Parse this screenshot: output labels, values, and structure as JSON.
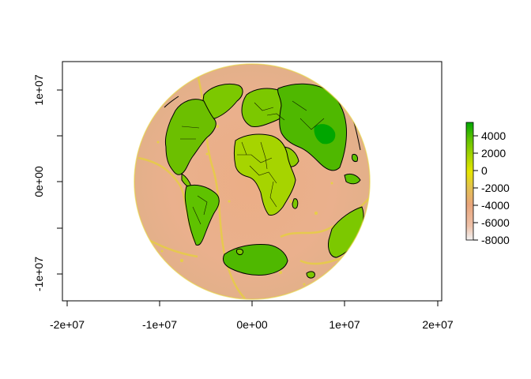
{
  "x_axis": {
    "ticks": [
      {
        "value": -20000000,
        "label": "-2e+07"
      },
      {
        "value": -10000000,
        "label": "-1e+07"
      },
      {
        "value": 0,
        "label": "0e+00"
      },
      {
        "value": 10000000,
        "label": "1e+07"
      },
      {
        "value": 20000000,
        "label": "2e+07"
      }
    ]
  },
  "y_axis": {
    "ticks": [
      {
        "value": -10000000,
        "label": "-1e+07"
      },
      {
        "value": 0,
        "label": "0e+00"
      },
      {
        "value": 10000000,
        "label": "1e+07"
      }
    ]
  },
  "legend": {
    "ticks": [
      {
        "value": 4000,
        "label": "4000"
      },
      {
        "value": 2000,
        "label": "2000"
      },
      {
        "value": 0,
        "label": "0"
      },
      {
        "value": -2000,
        "label": "-2000"
      },
      {
        "value": -4000,
        "label": "-4000"
      },
      {
        "value": -6000,
        "label": "-6000"
      },
      {
        "value": -8000,
        "label": "-8000"
      }
    ],
    "colors": [
      "#f2f2f2",
      "#eec1a8",
      "#e9a57b",
      "#e3c24f",
      "#e6e600",
      "#a6d400",
      "#5fc200",
      "#00a600"
    ]
  },
  "colors": {
    "ocean_deep": "#e9a57b",
    "ocean_shallow": "#eec1a8",
    "ridge": "#e6e600",
    "land_high": "#00a600",
    "land_mid": "#7cc800",
    "land_low": "#a6d400",
    "ice": "#4fb800"
  }
}
